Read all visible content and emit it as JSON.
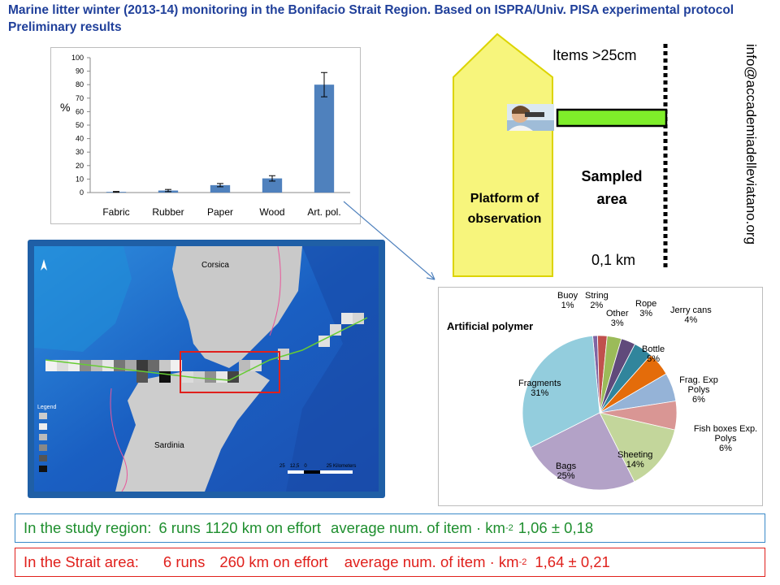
{
  "header": {
    "title": "Marine litter winter (2013-14) monitoring in the Bonifacio Strait Region. Based on ISPRA/Univ. PISA experimental protocol",
    "subtitle": "Preliminary results"
  },
  "chart_data": [
    {
      "type": "bar",
      "ylabel": "%",
      "ylim": [
        0,
        100
      ],
      "yticks": [
        0,
        10,
        20,
        30,
        40,
        50,
        60,
        70,
        80,
        90,
        100
      ],
      "categories": [
        "Fabric",
        "Rubber",
        "Paper",
        "Wood",
        "Art. pol."
      ],
      "values": [
        0.5,
        1.5,
        5.5,
        10.5,
        80
      ],
      "errors": [
        0.3,
        0.8,
        1.2,
        2.0,
        9
      ],
      "color": "#4f81bd"
    },
    {
      "type": "pie",
      "title": "Artificial polymer",
      "slices": [
        {
          "label": "Buoy",
          "value": 1,
          "pct": "1%",
          "color": "#8064a2"
        },
        {
          "label": "String",
          "value": 2,
          "pct": "2%",
          "color": "#c0504d"
        },
        {
          "label": "Other",
          "value": 3,
          "pct": "3%",
          "color": "#9bbb59"
        },
        {
          "label": "Rope",
          "value": 3,
          "pct": "3%",
          "color": "#604a7b"
        },
        {
          "label": "Jerry cans",
          "value": 4,
          "pct": "4%",
          "color": "#31859c"
        },
        {
          "label": "Bottle",
          "value": 5,
          "pct": "5%",
          "color": "#e46c0a"
        },
        {
          "label": "Frag. Exp Polys",
          "value": 6,
          "pct": "6%",
          "color": "#95b3d7"
        },
        {
          "label": "Fish boxes Exp. Polys",
          "value": 6,
          "pct": "6%",
          "color": "#d99694"
        },
        {
          "label": "Sheeting",
          "value": 14,
          "pct": "14%",
          "color": "#c3d69b"
        },
        {
          "label": "Bags",
          "value": 25,
          "pct": "25%",
          "color": "#b3a2c7"
        },
        {
          "label": "Fragments",
          "value": 31,
          "pct": "31%",
          "color": "#93cddd"
        }
      ]
    }
  ],
  "diagram": {
    "platform_label_1": "Platform of",
    "platform_label_2": "observation",
    "items_label": "Items >25cm",
    "sampled_label_1": "Sampled",
    "sampled_label_2": "area",
    "distance_label": "0,1 km",
    "email": "info@accademiadelleviatano.org"
  },
  "map": {
    "label_corsica": "Corsica",
    "label_sardinia": "Sardinia",
    "legend_title": "Legend",
    "scale_labels": [
      "25",
      "12,5",
      "0",
      "25 Kilometers"
    ]
  },
  "summary": {
    "region": {
      "label": "In the study region:",
      "runs": "6 runs",
      "effort": "1120 km on effort",
      "avg_label": "average num. of item · km",
      "exp": "-2",
      "value": "1,06 ± 0,18"
    },
    "strait": {
      "label": "In the Strait area:",
      "runs": "6 runs",
      "effort": "260 km on effort",
      "avg_label": "average num. of item · km",
      "exp": "-2",
      "value": "1,64 ± 0,21"
    }
  }
}
